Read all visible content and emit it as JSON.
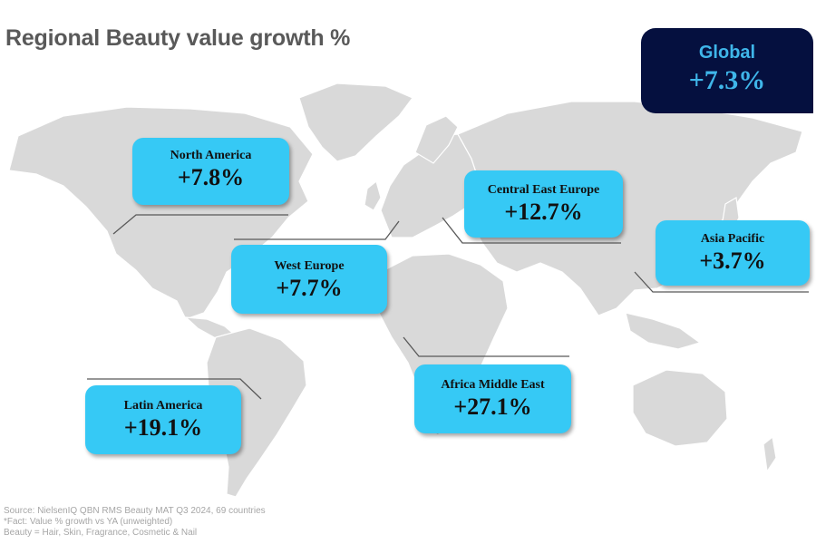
{
  "title": "Regional Beauty value growth %",
  "global": {
    "label": "Global",
    "value": "+7.3%"
  },
  "regions": [
    {
      "label": "North America",
      "value": "+7.8%"
    },
    {
      "label": "Central East Europe",
      "value": "+12.7%"
    },
    {
      "label": "Asia Pacific",
      "value": "+3.7%"
    },
    {
      "label": "West Europe",
      "value": "+7.7%"
    },
    {
      "label": "Africa Middle East",
      "value": "+27.1%"
    },
    {
      "label": "Latin America",
      "value": "+19.1%"
    }
  ],
  "footer": {
    "line1": "Source: NielsenIQ QBN RMS Beauty MAT Q3 2024, 69 countries",
    "line2": "*Fact: Value % growth vs YA (unweighted)",
    "line3": "Beauty = Hair, Skin, Fragrance, Cosmetic & Nail"
  },
  "colors": {
    "region_box": "#36c9f5",
    "global_box": "#05103f",
    "global_text": "#3fb6ea",
    "land": "#d9d9d9",
    "title": "#595959",
    "footer": "#a6a6a6"
  }
}
